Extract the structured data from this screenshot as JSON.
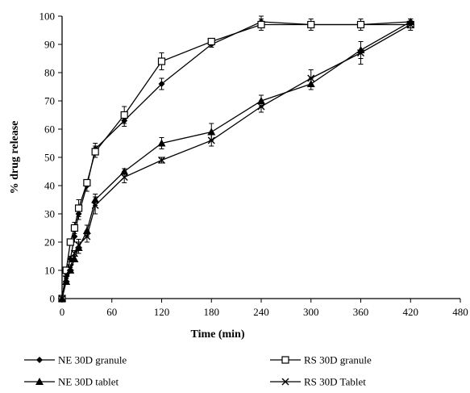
{
  "chart_data": {
    "type": "line",
    "title": "",
    "xlabel": "Time (min)",
    "ylabel": "% drug release",
    "xlim": [
      0,
      480
    ],
    "ylim": [
      0,
      100
    ],
    "xticks": [
      0,
      60,
      120,
      180,
      240,
      300,
      360,
      420,
      480
    ],
    "yticks": [
      0,
      10,
      20,
      30,
      40,
      50,
      60,
      70,
      80,
      90,
      100
    ],
    "grid": false,
    "legend_position": "bottom",
    "series": [
      {
        "name": "NE 30D granule",
        "marker": "diamond",
        "x": [
          0,
          5,
          10,
          15,
          20,
          30,
          40,
          75,
          120,
          180,
          240,
          300,
          360,
          420
        ],
        "y": [
          0,
          9,
          14,
          22,
          30,
          40,
          53,
          63,
          76,
          90,
          98,
          97,
          97,
          98
        ],
        "err": [
          0,
          1,
          1,
          2,
          2,
          2,
          2,
          2,
          2,
          1,
          2,
          1,
          1,
          1
        ]
      },
      {
        "name": "RS 30D granule",
        "marker": "square",
        "x": [
          0,
          5,
          10,
          15,
          20,
          30,
          40,
          75,
          120,
          180,
          240,
          300,
          360,
          420
        ],
        "y": [
          0,
          10,
          20,
          25,
          32,
          41,
          52,
          65,
          84,
          91,
          97,
          97,
          97,
          97
        ],
        "err": [
          0,
          1,
          1,
          2,
          3,
          1,
          2,
          3,
          3,
          1,
          2,
          2,
          2,
          1
        ]
      },
      {
        "name": "NE 30D tablet",
        "marker": "triangle",
        "x": [
          0,
          5,
          10,
          15,
          20,
          30,
          40,
          75,
          120,
          180,
          240,
          300,
          360,
          420
        ],
        "y": [
          0,
          6,
          10,
          14,
          18,
          24,
          35,
          45,
          55,
          59,
          70,
          76,
          88,
          98
        ],
        "err": [
          0,
          1,
          1,
          1,
          2,
          2,
          2,
          1,
          2,
          3,
          2,
          2,
          3,
          1
        ]
      },
      {
        "name": "RS 30D  Tablet",
        "marker": "x",
        "x": [
          0,
          5,
          10,
          15,
          20,
          30,
          40,
          75,
          120,
          180,
          240,
          300,
          360,
          420
        ],
        "y": [
          0,
          7,
          11,
          16,
          19,
          22,
          33,
          43,
          49,
          56,
          68,
          78,
          87,
          97
        ],
        "err": [
          0,
          1,
          1,
          1,
          2,
          2,
          3,
          2,
          1,
          2,
          2,
          3,
          4,
          2
        ]
      }
    ]
  }
}
